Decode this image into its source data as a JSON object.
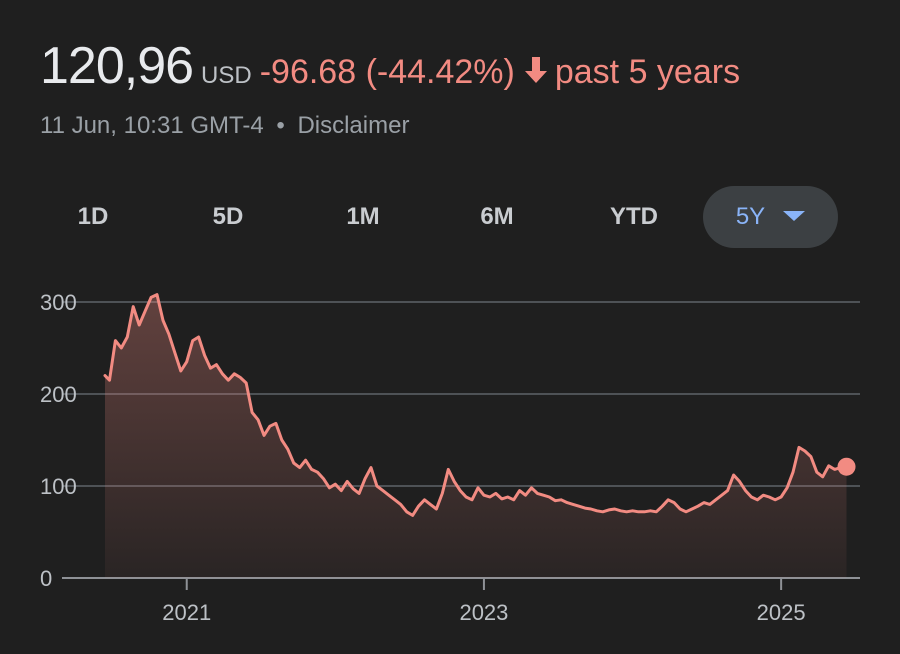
{
  "quote": {
    "price": "120,96",
    "currency": "USD",
    "change": "-96.68 (-44.42%)",
    "period": "past 5 years",
    "timestamp": "11 Jun, 10:31 GMT-4",
    "separator": "•",
    "disclaimer": "Disclaimer",
    "colors": {
      "negative": "#f28b82",
      "accent": "#8ab4f8"
    }
  },
  "tabs": [
    {
      "label": "1D",
      "active": false
    },
    {
      "label": "5D",
      "active": false
    },
    {
      "label": "1M",
      "active": false
    },
    {
      "label": "6M",
      "active": false
    },
    {
      "label": "YTD",
      "active": false
    },
    {
      "label": "5Y",
      "active": true
    }
  ],
  "chart_data": {
    "type": "area",
    "ylim": [
      0,
      320
    ],
    "yticks": [
      "0",
      "100",
      "200",
      "300"
    ],
    "xticks": [
      "2021",
      "2023",
      "2025"
    ],
    "xrange": [
      2020.45,
      2025.45
    ],
    "grid": true,
    "series": [
      {
        "color": "#f28b82",
        "x": [
          2020.45,
          2020.48,
          2020.52,
          2020.56,
          2020.6,
          2020.64,
          2020.68,
          2020.72,
          2020.76,
          2020.8,
          2020.84,
          2020.88,
          2020.92,
          2020.96,
          2021.0,
          2021.04,
          2021.08,
          2021.12,
          2021.16,
          2021.2,
          2021.24,
          2021.28,
          2021.32,
          2021.36,
          2021.4,
          2021.44,
          2021.48,
          2021.52,
          2021.56,
          2021.6,
          2021.64,
          2021.68,
          2021.72,
          2021.76,
          2021.8,
          2021.84,
          2021.88,
          2021.92,
          2021.96,
          2022.0,
          2022.04,
          2022.08,
          2022.12,
          2022.16,
          2022.2,
          2022.24,
          2022.28,
          2022.32,
          2022.36,
          2022.4,
          2022.44,
          2022.48,
          2022.52,
          2022.56,
          2022.6,
          2022.64,
          2022.68,
          2022.72,
          2022.76,
          2022.8,
          2022.84,
          2022.88,
          2022.92,
          2022.96,
          2023.0,
          2023.04,
          2023.08,
          2023.12,
          2023.16,
          2023.2,
          2023.24,
          2023.28,
          2023.32,
          2023.36,
          2023.4,
          2023.44,
          2023.48,
          2023.52,
          2023.56,
          2023.6,
          2023.64,
          2023.68,
          2023.72,
          2023.76,
          2023.8,
          2023.84,
          2023.88,
          2023.92,
          2023.96,
          2024.0,
          2024.04,
          2024.08,
          2024.12,
          2024.16,
          2024.2,
          2024.24,
          2024.28,
          2024.32,
          2024.36,
          2024.4,
          2024.44,
          2024.48,
          2024.52,
          2024.56,
          2024.6,
          2024.64,
          2024.68,
          2024.72,
          2024.76,
          2024.8,
          2024.84,
          2024.88,
          2024.92,
          2024.96,
          2025.0,
          2025.04,
          2025.08,
          2025.12,
          2025.16,
          2025.2,
          2025.24,
          2025.28,
          2025.32,
          2025.36,
          2025.4,
          2025.44
        ],
        "values": [
          220,
          215,
          258,
          250,
          262,
          295,
          275,
          290,
          305,
          308,
          280,
          265,
          245,
          225,
          235,
          258,
          262,
          242,
          228,
          232,
          222,
          215,
          222,
          218,
          212,
          180,
          172,
          155,
          165,
          168,
          150,
          140,
          125,
          120,
          128,
          118,
          115,
          108,
          98,
          102,
          95,
          105,
          97,
          92,
          108,
          120,
          100,
          95,
          90,
          85,
          80,
          72,
          68,
          78,
          85,
          80,
          75,
          92,
          118,
          105,
          95,
          88,
          85,
          98,
          90,
          88,
          92,
          86,
          88,
          85,
          95,
          90,
          98,
          92,
          90,
          88,
          84,
          85,
          82,
          80,
          78,
          76,
          75,
          73,
          72,
          74,
          75,
          73,
          72,
          73,
          72,
          72,
          73,
          72,
          78,
          85,
          82,
          75,
          72,
          75,
          78,
          82,
          80,
          85,
          90,
          95,
          112,
          105,
          95,
          88,
          85,
          90,
          88,
          85,
          88,
          98,
          115,
          142,
          138,
          132,
          115,
          110,
          122,
          118,
          120,
          120.96
        ]
      }
    ]
  }
}
